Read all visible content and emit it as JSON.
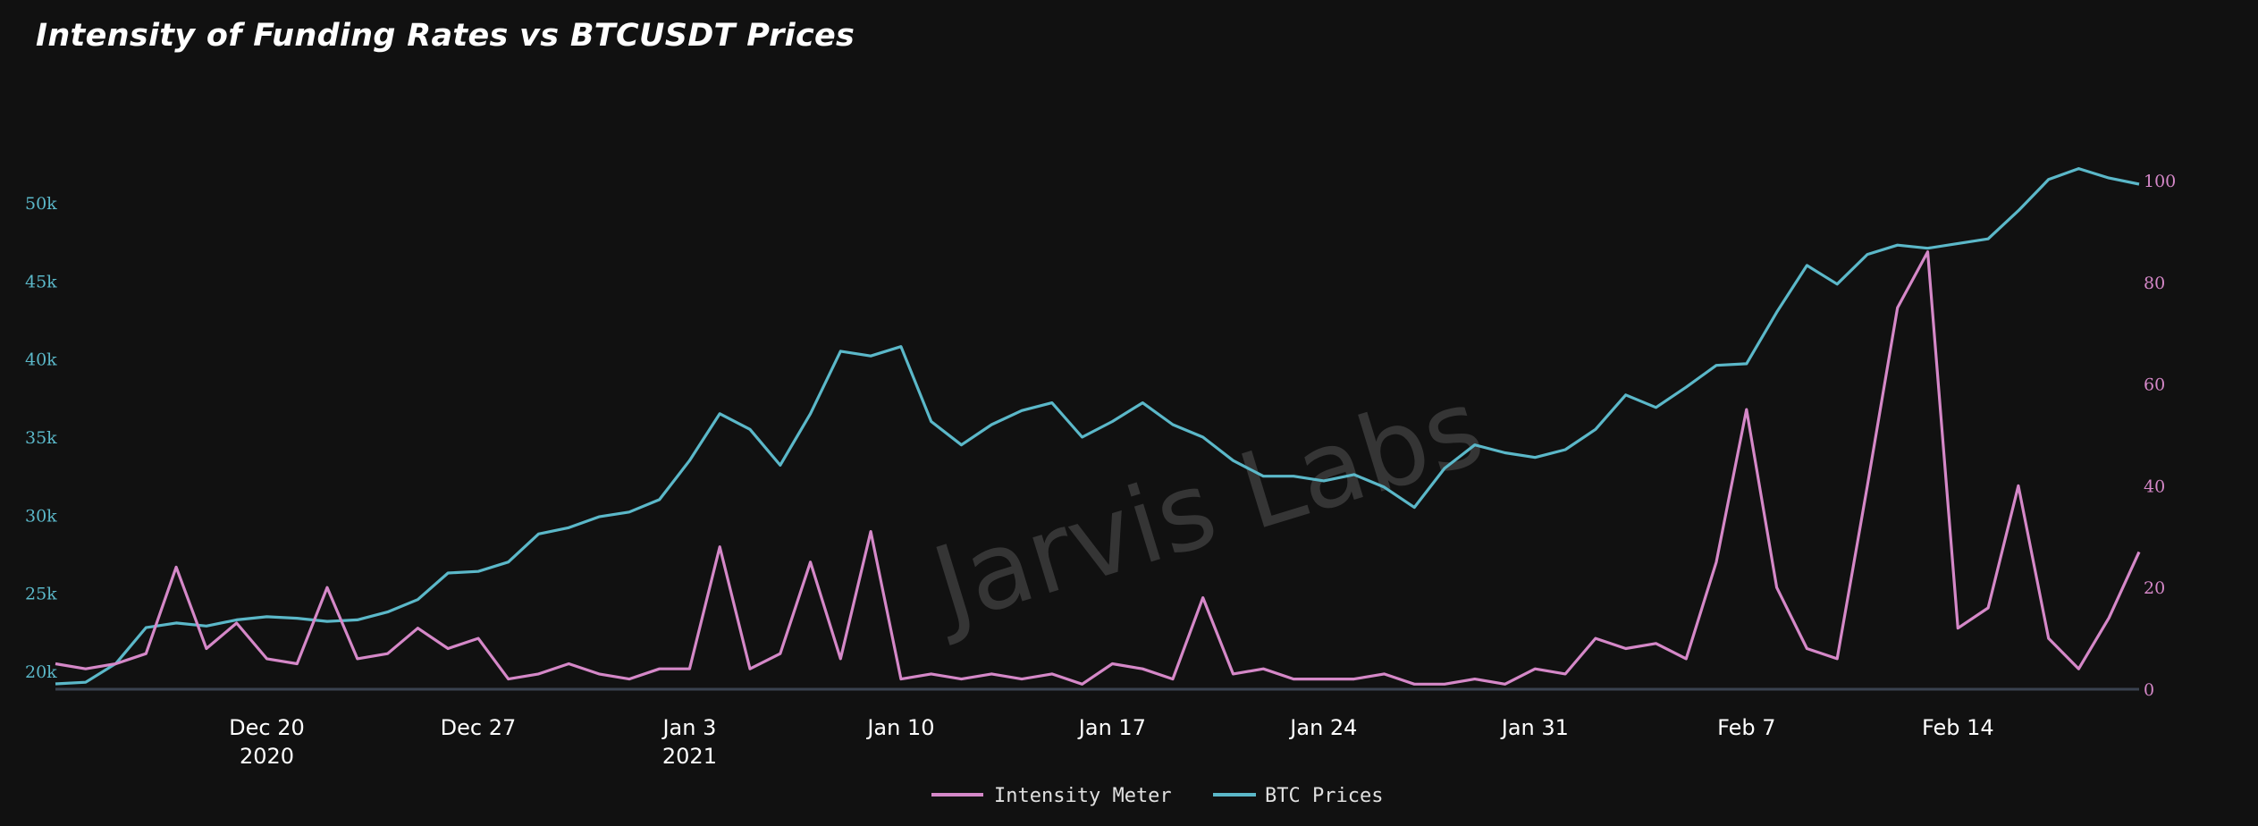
{
  "title": "Intensity of Funding Rates vs BTCUSDT Prices",
  "watermark": "Jarvis Labs",
  "legend": {
    "intensity": "Intensity Meter",
    "btc": "BTC Prices"
  },
  "colors": {
    "intensity": "#d588c8",
    "btc": "#5bb8c9",
    "background": "#111111"
  },
  "chart_data": {
    "type": "line",
    "title": "Intensity of Funding Rates vs BTCUSDT Prices",
    "x_range": [
      "2020-12-13",
      "2021-02-20"
    ],
    "x_ticks": [
      {
        "date": "2020-12-20",
        "line1": "Dec 20",
        "line2": "2020"
      },
      {
        "date": "2020-12-27",
        "line1": "Dec 27",
        "line2": ""
      },
      {
        "date": "2021-01-03",
        "line1": "Jan 3",
        "line2": "2021"
      },
      {
        "date": "2021-01-10",
        "line1": "Jan 10",
        "line2": ""
      },
      {
        "date": "2021-01-17",
        "line1": "Jan 17",
        "line2": ""
      },
      {
        "date": "2021-01-24",
        "line1": "Jan 24",
        "line2": ""
      },
      {
        "date": "2021-01-31",
        "line1": "Jan 31",
        "line2": ""
      },
      {
        "date": "2021-02-07",
        "line1": "Feb 7",
        "line2": ""
      },
      {
        "date": "2021-02-14",
        "line1": "Feb 14",
        "line2": ""
      }
    ],
    "y_left": {
      "range": [
        19000,
        52000
      ],
      "ticks": [
        20000,
        25000,
        30000,
        35000,
        40000,
        45000,
        50000
      ],
      "tick_labels": [
        "20k",
        "25k",
        "30k",
        "35k",
        "40k",
        "45k",
        "50k"
      ]
    },
    "y_right": {
      "range": [
        0,
        100
      ],
      "ticks": [
        0,
        20,
        40,
        60,
        80,
        100
      ],
      "tick_labels": [
        "0",
        "20",
        "40",
        "60",
        "80",
        "100"
      ]
    },
    "legend_position": "bottom-center",
    "grid": false,
    "series": [
      {
        "name": "BTC Prices",
        "axis": "left",
        "x": [
          "2020-12-13",
          "2020-12-14",
          "2020-12-15",
          "2020-12-16",
          "2020-12-17",
          "2020-12-18",
          "2020-12-19",
          "2020-12-20",
          "2020-12-21",
          "2020-12-22",
          "2020-12-23",
          "2020-12-24",
          "2020-12-25",
          "2020-12-26",
          "2020-12-27",
          "2020-12-28",
          "2020-12-29",
          "2020-12-30",
          "2020-12-31",
          "2021-01-01",
          "2021-01-02",
          "2021-01-03",
          "2021-01-04",
          "2021-01-05",
          "2021-01-06",
          "2021-01-07",
          "2021-01-08",
          "2021-01-09",
          "2021-01-10",
          "2021-01-11",
          "2021-01-12",
          "2021-01-13",
          "2021-01-14",
          "2021-01-15",
          "2021-01-16",
          "2021-01-17",
          "2021-01-18",
          "2021-01-19",
          "2021-01-20",
          "2021-01-21",
          "2021-01-22",
          "2021-01-23",
          "2021-01-24",
          "2021-01-25",
          "2021-01-26",
          "2021-01-27",
          "2021-01-28",
          "2021-01-29",
          "2021-01-30",
          "2021-01-31",
          "2021-02-01",
          "2021-02-02",
          "2021-02-03",
          "2021-02-04",
          "2021-02-05",
          "2021-02-06",
          "2021-02-07",
          "2021-02-08",
          "2021-02-09",
          "2021-02-10",
          "2021-02-11",
          "2021-02-12",
          "2021-02-13",
          "2021-02-14",
          "2021-02-15",
          "2021-02-16",
          "2021-02-17",
          "2021-02-18",
          "2021-02-19",
          "2021-02-20"
        ],
        "values": [
          19200,
          19300,
          20500,
          22800,
          23100,
          22900,
          23300,
          23500,
          23400,
          23200,
          23300,
          23800,
          24600,
          26300,
          26400,
          27000,
          28800,
          29200,
          29900,
          30200,
          31000,
          33500,
          36500,
          35500,
          33200,
          36500,
          40500,
          40200,
          40800,
          36000,
          34500,
          35800,
          36700,
          37200,
          35000,
          36000,
          37200,
          35800,
          35000,
          33500,
          32500,
          32500,
          32200,
          32600,
          31800,
          30500,
          33000,
          34500,
          34000,
          33700,
          34200,
          35500,
          37700,
          36900,
          38200,
          39600,
          39700,
          43000,
          46000,
          44800,
          46700,
          47300,
          47100,
          47400,
          47700,
          49500,
          51500,
          52200,
          51600,
          51200
        ]
      },
      {
        "name": "Intensity Meter",
        "axis": "right",
        "x": [
          "2020-12-13",
          "2020-12-14",
          "2020-12-15",
          "2020-12-16",
          "2020-12-17",
          "2020-12-18",
          "2020-12-19",
          "2020-12-20",
          "2020-12-21",
          "2020-12-22",
          "2020-12-23",
          "2020-12-24",
          "2020-12-25",
          "2020-12-26",
          "2020-12-27",
          "2020-12-28",
          "2020-12-29",
          "2020-12-30",
          "2020-12-31",
          "2021-01-01",
          "2021-01-02",
          "2021-01-03",
          "2021-01-04",
          "2021-01-05",
          "2021-01-06",
          "2021-01-07",
          "2021-01-08",
          "2021-01-09",
          "2021-01-10",
          "2021-01-11",
          "2021-01-12",
          "2021-01-13",
          "2021-01-14",
          "2021-01-15",
          "2021-01-16",
          "2021-01-17",
          "2021-01-18",
          "2021-01-19",
          "2021-01-20",
          "2021-01-21",
          "2021-01-22",
          "2021-01-23",
          "2021-01-24",
          "2021-01-25",
          "2021-01-26",
          "2021-01-27",
          "2021-01-28",
          "2021-01-29",
          "2021-01-30",
          "2021-01-31",
          "2021-02-01",
          "2021-02-02",
          "2021-02-03",
          "2021-02-04",
          "2021-02-05",
          "2021-02-06",
          "2021-02-07",
          "2021-02-08",
          "2021-02-09",
          "2021-02-10",
          "2021-02-11",
          "2021-02-12",
          "2021-02-13",
          "2021-02-14",
          "2021-02-15",
          "2021-02-16",
          "2021-02-17",
          "2021-02-18",
          "2021-02-19",
          "2021-02-20"
        ],
        "values": [
          5,
          4,
          5,
          7,
          24,
          8,
          13,
          6,
          5,
          20,
          6,
          7,
          12,
          8,
          10,
          2,
          3,
          5,
          3,
          2,
          4,
          4,
          28,
          4,
          7,
          25,
          6,
          31,
          2,
          3,
          2,
          3,
          2,
          3,
          1,
          5,
          4,
          2,
          18,
          3,
          4,
          2,
          2,
          2,
          3,
          1,
          1,
          2,
          1,
          4,
          3,
          10,
          8,
          9,
          6,
          25,
          55,
          20,
          8,
          6,
          40,
          75,
          86,
          12,
          16,
          40,
          10,
          4,
          14,
          27
        ]
      }
    ]
  }
}
